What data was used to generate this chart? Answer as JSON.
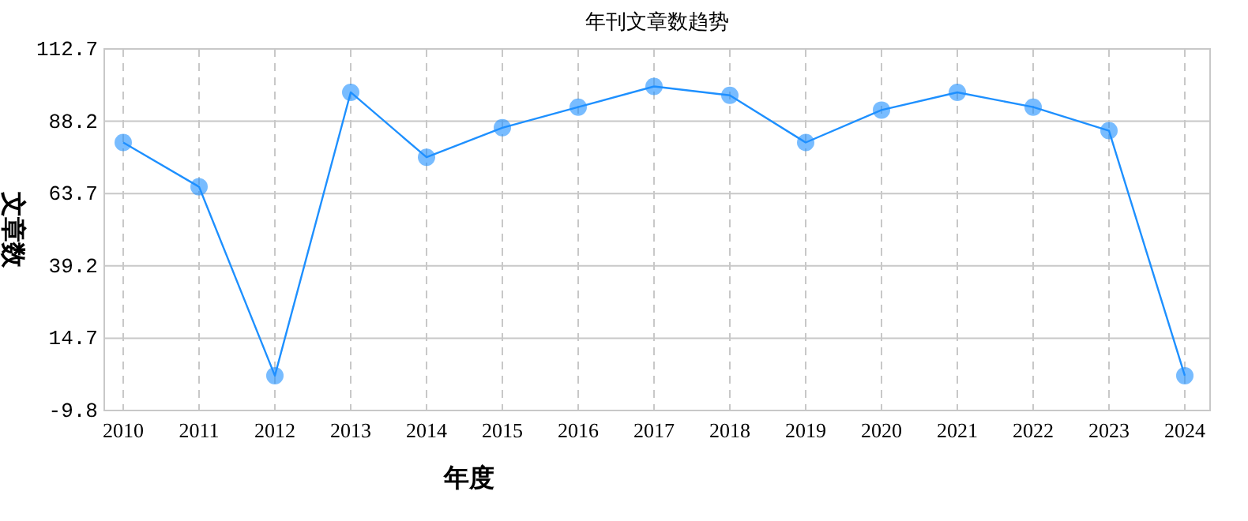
{
  "chart_data": {
    "type": "line",
    "title": "年刊文章数趋势",
    "xlabel": "年度",
    "ylabel": "文章数",
    "categories": [
      "2010",
      "2011",
      "2012",
      "2013",
      "2014",
      "2015",
      "2016",
      "2017",
      "2018",
      "2019",
      "2020",
      "2021",
      "2022",
      "2023",
      "2024"
    ],
    "series": [
      {
        "color": "#1e90ff",
        "values": [
          81,
          66,
          2,
          98,
          76,
          86,
          93,
          100,
          97,
          81,
          92,
          98,
          93,
          85,
          2
        ]
      }
    ],
    "ylim": [
      -9.8,
      112.7
    ],
    "yticks": [
      -9.8,
      14.7,
      39.2,
      63.7,
      88.2,
      112.7
    ],
    "grid": true,
    "marker": "circle",
    "line_style": "solid"
  }
}
